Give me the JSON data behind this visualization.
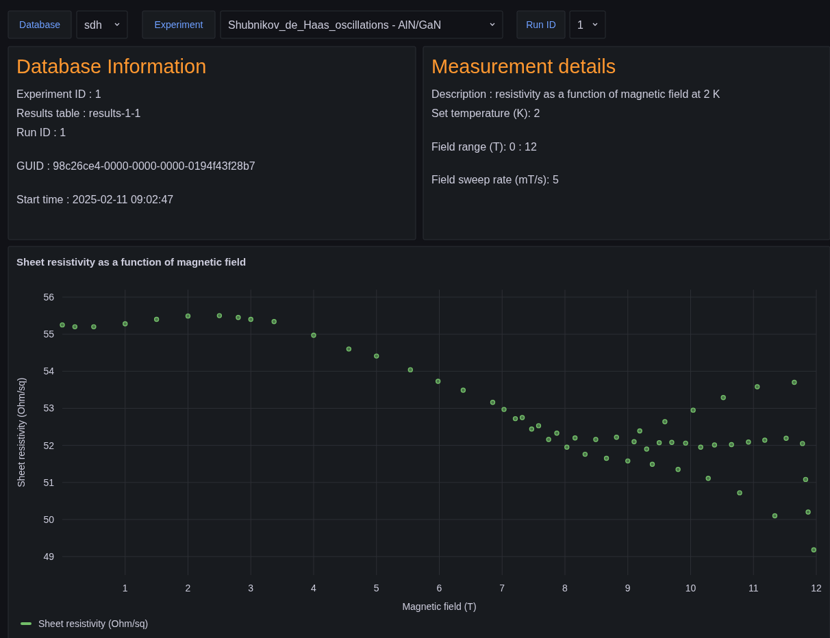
{
  "chart_data": [
    {
      "type": "other",
      "annotations": [
        "Database",
        "sdh",
        "Experiment",
        "Shubnikov_de_Haas_oscillations - AlN/GaN",
        "Run ID",
        "1"
      ]
    },
    {
      "type": "other",
      "title": "Database Information",
      "annotations": [
        "Experiment ID : 1",
        "Results table : results-1-1",
        "Run ID : 1",
        "GUID : 98c26ce4-0000-0000-0000-0194f43f28b7",
        "Start time : 2025-02-11 09:02:47"
      ]
    },
    {
      "type": "other",
      "title": "Measurement details",
      "annotations": [
        "Description : resistivity as a function of magnetic field at 2 K",
        "Set temperature (K): 2",
        "Field range (T): 0 : 12",
        "Field sweep rate (mT/s): 5"
      ]
    },
    {
      "type": "scatter",
      "title": "Sheet resistivity as a function of magnetic field",
      "xlabel": "Magnetic field (T)",
      "ylabel": "Sheet resistivity (Ohm/sq)",
      "xlim": [
        0,
        12
      ],
      "ylim": [
        48.5,
        56.2
      ],
      "xticks": [
        1,
        2,
        3,
        4,
        5,
        6,
        7,
        8,
        9,
        10,
        11,
        12
      ],
      "yticks": [
        49,
        50,
        51,
        52,
        53,
        54,
        55,
        56
      ],
      "grid": true,
      "legend": "bottom left",
      "marker": "circle",
      "series": [
        {
          "name": "Sheet resistivity (Ohm/sq)",
          "color": "#73bf69",
          "x": [
            0,
            0.2,
            0.5,
            1,
            1.5,
            2,
            2.5,
            2.8,
            3.0,
            3.37,
            4.0,
            4.56,
            5.0,
            5.54,
            5.98,
            6.38,
            6.85,
            7.03,
            7.21,
            7.32,
            7.47,
            7.58,
            7.74,
            7.87,
            8.03,
            8.16,
            8.32,
            8.49,
            8.66,
            8.82,
            9.0,
            9.1,
            9.19,
            9.3,
            9.39,
            9.5,
            9.59,
            9.7,
            9.8,
            9.92,
            10.04,
            10.16,
            10.28,
            10.38,
            10.52,
            10.65,
            10.78,
            10.92,
            11.06,
            11.18,
            11.34,
            11.52,
            11.65,
            11.78,
            11.83,
            11.87,
            11.96
          ],
          "values": [
            55.25,
            55.2,
            55.2,
            55.28,
            55.4,
            55.49,
            55.5,
            55.45,
            55.4,
            55.34,
            54.97,
            54.6,
            54.41,
            54.04,
            53.73,
            53.49,
            53.16,
            52.97,
            52.72,
            52.75,
            52.44,
            52.53,
            52.16,
            52.33,
            51.95,
            52.2,
            51.76,
            52.16,
            51.65,
            52.22,
            51.58,
            52.1,
            52.39,
            51.9,
            51.49,
            52.07,
            52.64,
            52.08,
            51.35,
            52.06,
            52.95,
            51.95,
            51.11,
            52.01,
            53.29,
            52.02,
            50.72,
            52.09,
            53.58,
            52.14,
            50.1,
            52.19,
            53.7,
            52.05,
            51.08,
            50.2,
            49.18
          ]
        }
      ]
    }
  ]
}
